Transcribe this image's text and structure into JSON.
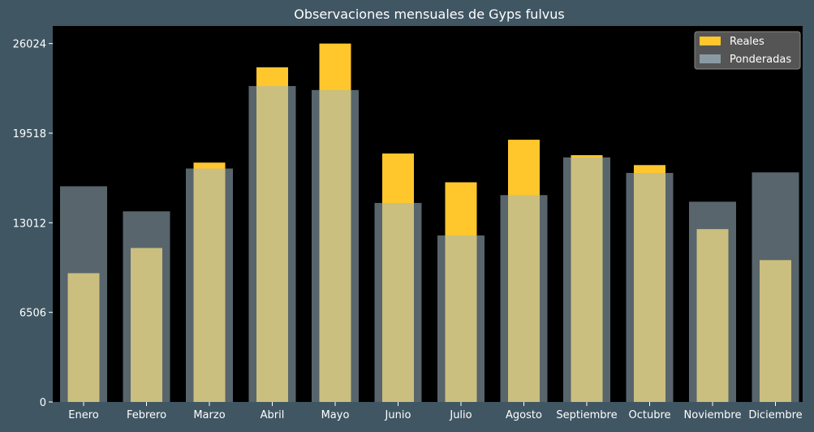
{
  "colors": {
    "background": "#405663",
    "plot_background": "#000000",
    "real": "#FFC72C",
    "weighted": "#A0B8C4",
    "text": "#ffffff",
    "legend_bg": "#555555"
  },
  "chart_data": {
    "type": "bar",
    "title": "Observaciones mensuales de Gyps fulvus",
    "xlabel": "",
    "ylabel": "",
    "ylim": [
      0,
      27300
    ],
    "yticks": [
      0,
      6506,
      13012,
      19518,
      26024
    ],
    "categories": [
      "Enero",
      "Febrero",
      "Marzo",
      "Abril",
      "Mayo",
      "Junio",
      "Julio",
      "Agosto",
      "Septiembre",
      "Octubre",
      "Noviembre",
      "Diciembre"
    ],
    "series": [
      {
        "name": "Reales",
        "values": [
          9350,
          11180,
          17380,
          24300,
          26024,
          18040,
          15950,
          19040,
          17920,
          17200,
          12550,
          10300
        ]
      },
      {
        "name": "Ponderadas",
        "values": [
          15660,
          13840,
          16950,
          22940,
          22650,
          14450,
          12090,
          15020,
          17760,
          16630,
          14540,
          16670
        ]
      }
    ],
    "legend": {
      "position": "top-right"
    },
    "grid": false
  }
}
